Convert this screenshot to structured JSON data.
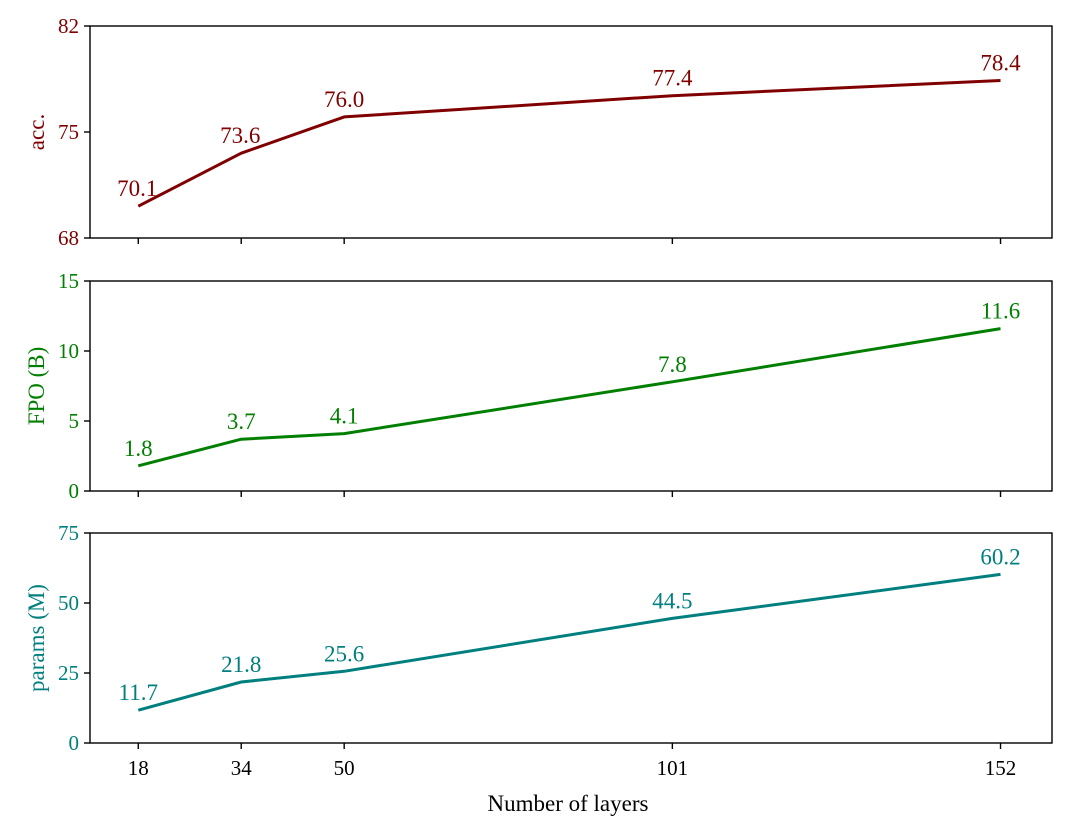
{
  "xlabel": "Number of layers",
  "chart_data": [
    {
      "type": "line",
      "x": [
        18,
        34,
        50,
        101,
        152
      ],
      "xticks": [
        "18",
        "34",
        "50",
        "101",
        "152"
      ],
      "xlim": [
        10.5,
        160
      ],
      "ylabel": "acc.",
      "ylim": [
        68,
        82
      ],
      "yticks": [
        "68",
        "75",
        "82"
      ],
      "color": "#800000",
      "series": [
        {
          "values": [
            70.1,
            73.6,
            76.0,
            77.4,
            78.4
          ],
          "labels": [
            "70.1",
            "73.6",
            "76.0",
            "77.4",
            "78.4"
          ]
        }
      ]
    },
    {
      "type": "line",
      "x": [
        18,
        34,
        50,
        101,
        152
      ],
      "xticks": [
        "18",
        "34",
        "50",
        "101",
        "152"
      ],
      "xlim": [
        10.5,
        160
      ],
      "ylabel": "FPO (B)",
      "ylim": [
        0,
        15
      ],
      "yticks": [
        "0",
        "5",
        "10",
        "15"
      ],
      "color": "#007f00",
      "series": [
        {
          "values": [
            1.8,
            3.7,
            4.1,
            7.8,
            11.6
          ],
          "labels": [
            "1.8",
            "3.7",
            "4.1",
            "7.8",
            "11.6"
          ]
        }
      ]
    },
    {
      "type": "line",
      "x": [
        18,
        34,
        50,
        101,
        152
      ],
      "xticks": [
        "18",
        "34",
        "50",
        "101",
        "152"
      ],
      "xlim": [
        10.5,
        160
      ],
      "ylabel": "params (M)",
      "ylim": [
        0,
        75
      ],
      "yticks": [
        "0",
        "25",
        "50",
        "75"
      ],
      "color": "#007f7f",
      "series": [
        {
          "values": [
            11.7,
            21.8,
            25.6,
            44.5,
            60.2
          ],
          "labels": [
            "11.7",
            "21.8",
            "25.6",
            "44.5",
            "60.2"
          ]
        }
      ]
    }
  ]
}
